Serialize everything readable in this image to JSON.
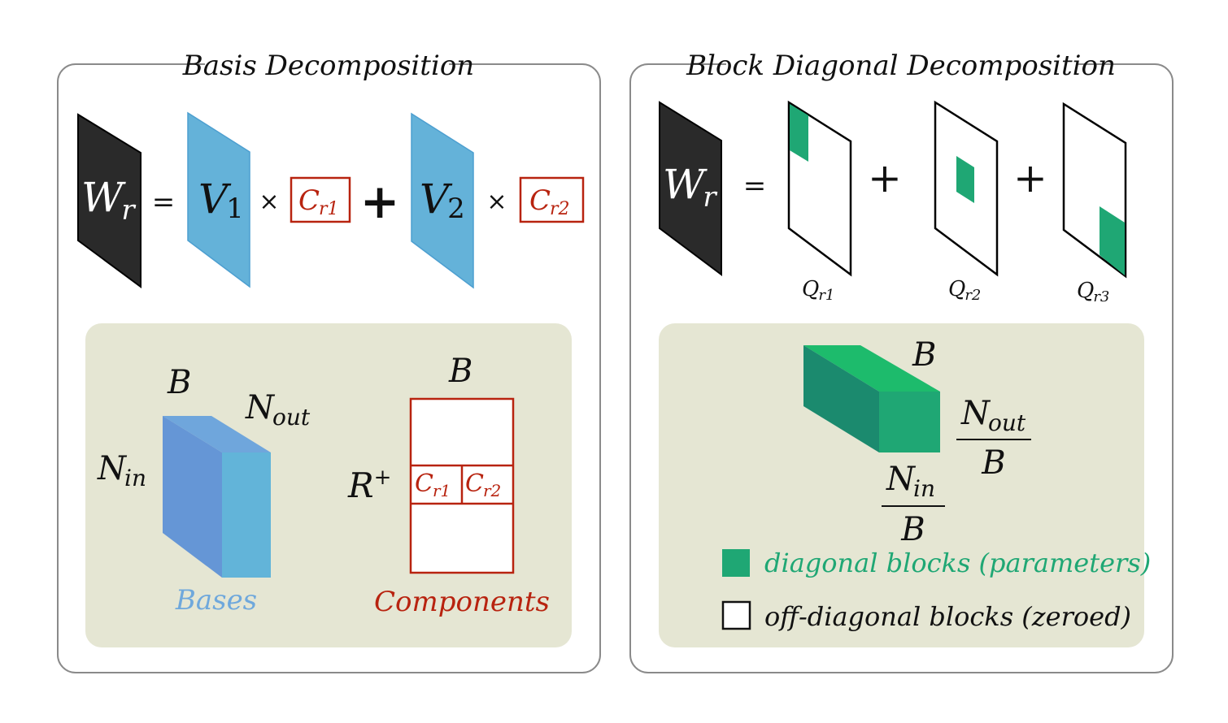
{
  "panels": {
    "basis": {
      "title": "Basis Decomposition",
      "equation": {
        "W": "W",
        "W_sub": "r",
        "equals": "=",
        "V1": "V",
        "V1_sub": "1",
        "times": "×",
        "C1": "C",
        "C1_sub": "r1",
        "plus": "+",
        "V2": "V",
        "V2_sub": "2",
        "C2": "C",
        "C2_sub": "r2"
      },
      "bases": {
        "B": "B",
        "N_out": "N",
        "N_out_sub": "out",
        "N_in": "N",
        "N_in_sub": "in",
        "caption": "Bases"
      },
      "components": {
        "B": "B",
        "R": "R",
        "R_sup": "+",
        "C1": "C",
        "C1_sub": "r1",
        "C2": "C",
        "C2_sub": "r2",
        "caption": "Components"
      }
    },
    "block": {
      "title": "Block Diagonal Decomposition",
      "equation": {
        "W": "W",
        "W_sub": "r",
        "equals": "=",
        "plus": "+",
        "Q1": "Q",
        "Q1_sub": "r1",
        "Q2": "Q",
        "Q2_sub": "r2",
        "Q3": "Q",
        "Q3_sub": "r3"
      },
      "block_shape": {
        "B": "B",
        "N_out": "N",
        "N_out_sub": "out",
        "N_out_den": "B",
        "N_in": "N",
        "N_in_sub": "in",
        "N_in_den": "B"
      },
      "legend": [
        {
          "label": "diagonal blocks (parameters)",
          "color": "#1fa774"
        },
        {
          "label": "off-diagonal blocks (zeroed)",
          "color": "#ffffff"
        }
      ]
    }
  },
  "colors": {
    "matrix_dark": "#2a2a2a",
    "basis_blue": "#64b2d9",
    "cube_front": "#6596d6",
    "cube_side": "#62b4d9",
    "component_red": "#b8230f",
    "block_green": "#1fa774",
    "block_green_top": "#1db96b",
    "block_green_side": "#1b8a6e",
    "inset_bg": "#e5e6d3",
    "bases_label": "#6fa8dc"
  }
}
